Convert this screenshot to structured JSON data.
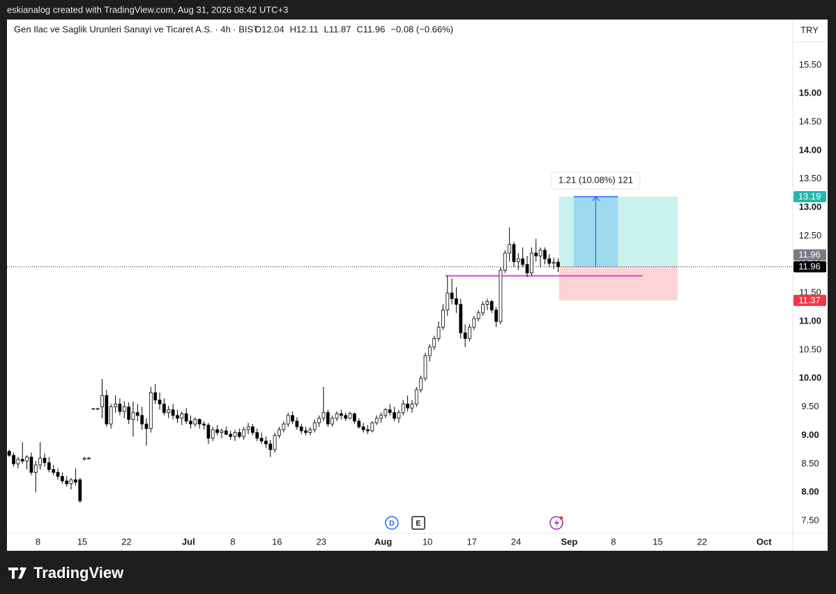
{
  "credit": "eskianalog created with TradingView.com, Aug 31, 2026 08:42 UTC+3",
  "brand": "TradingView",
  "chart_data": {
    "type": "candlestick",
    "symbol": "Gen Ilac ve Saglik Urunleri Sanayi ve Ticaret A.S. · 4h · BIST",
    "legend": [
      "O12.04",
      "H12.11",
      "L11.87",
      "C11.96"
    ],
    "change": "−0.08 (−0.66%)",
    "currency": "TRY",
    "up_color": "#ffffff",
    "down_color": "#000000",
    "wick_color": "#000000",
    "ylim": [
      7.28,
      16.3
    ],
    "yticks": [
      {
        "value": 7.5,
        "label": "7.50"
      },
      {
        "value": 8,
        "label": "8.00"
      },
      {
        "value": 8.5,
        "label": "8.50"
      },
      {
        "value": 9,
        "label": "9.00"
      },
      {
        "value": 9.5,
        "label": "9.50"
      },
      {
        "value": 10,
        "label": "10.00"
      },
      {
        "value": 10.5,
        "label": "10.50"
      },
      {
        "value": 11,
        "label": "11.00"
      },
      {
        "value": 11.5,
        "label": "11.50"
      },
      {
        "value": 12,
        "label": "12.00"
      },
      {
        "value": 12.5,
        "label": "12.50"
      },
      {
        "value": 13,
        "label": "13.00"
      },
      {
        "value": 13.5,
        "label": "13.50"
      },
      {
        "value": 14,
        "label": "14.00"
      },
      {
        "value": 14.5,
        "label": "14.50"
      },
      {
        "value": 15,
        "label": "15.00"
      },
      {
        "value": 15.5,
        "label": "15.50"
      }
    ],
    "xlim": [
      0,
      177.5
    ],
    "xticks": [
      {
        "value": 7,
        "label": "8"
      },
      {
        "value": 17,
        "label": "15"
      },
      {
        "value": 27,
        "label": "22"
      },
      {
        "value": 41,
        "label": "Jul"
      },
      {
        "value": 51,
        "label": "8"
      },
      {
        "value": 61,
        "label": "16"
      },
      {
        "value": 71,
        "label": "23"
      },
      {
        "value": 85,
        "label": "Aug"
      },
      {
        "value": 95,
        "label": "10"
      },
      {
        "value": 105,
        "label": "17"
      },
      {
        "value": 115,
        "label": "24"
      },
      {
        "value": 127,
        "label": "Sep"
      },
      {
        "value": 137,
        "label": "8"
      },
      {
        "value": 147,
        "label": "15"
      },
      {
        "value": 157,
        "label": "22"
      },
      {
        "value": 171,
        "label": "Oct"
      }
    ],
    "ohlc": [
      [
        8.72,
        8.75,
        8.62,
        8.65
      ],
      [
        8.65,
        8.7,
        8.45,
        8.5
      ],
      [
        8.5,
        8.62,
        8.42,
        8.58
      ],
      [
        8.58,
        8.88,
        8.5,
        8.55
      ],
      [
        8.55,
        8.65,
        8.4,
        8.62
      ],
      [
        8.62,
        8.7,
        8.3,
        8.35
      ],
      [
        8.35,
        8.55,
        8.0,
        8.48
      ],
      [
        8.48,
        8.88,
        8.4,
        8.6
      ],
      [
        8.6,
        8.68,
        8.45,
        8.52
      ],
      [
        8.52,
        8.62,
        8.35,
        8.4
      ],
      [
        8.4,
        8.48,
        8.3,
        8.35
      ],
      [
        8.35,
        8.42,
        8.22,
        8.28
      ],
      [
        8.28,
        8.35,
        8.15,
        8.2
      ],
      [
        8.2,
        8.28,
        8.1,
        8.15
      ],
      [
        8.15,
        8.25,
        8.05,
        8.22
      ],
      [
        8.22,
        8.42,
        8.12,
        8.18
      ],
      [
        8.22,
        8.25,
        7.82,
        7.85
      ],
      [
        8.58,
        8.62,
        8.56,
        8.6
      ],
      [
        8.6,
        8.62,
        8.58,
        8.6
      ],
      [
        9.47,
        9.48,
        9.46,
        9.47
      ],
      [
        9.47,
        9.48,
        9.46,
        9.47
      ],
      [
        9.5,
        9.99,
        9.3,
        9.7
      ],
      [
        9.7,
        9.8,
        9.15,
        9.2
      ],
      [
        9.2,
        9.55,
        9.12,
        9.5
      ],
      [
        9.5,
        9.7,
        9.4,
        9.55
      ],
      [
        9.55,
        9.65,
        9.35,
        9.42
      ],
      [
        9.42,
        9.6,
        9.3,
        9.5
      ],
      [
        9.5,
        9.58,
        9.2,
        9.28
      ],
      [
        9.28,
        9.6,
        8.98,
        9.4
      ],
      [
        9.4,
        9.55,
        9.25,
        9.35
      ],
      [
        9.35,
        9.5,
        9.1,
        9.2
      ],
      [
        9.2,
        9.3,
        8.82,
        9.12
      ],
      [
        9.12,
        9.85,
        9.05,
        9.75
      ],
      [
        9.75,
        9.9,
        9.55,
        9.62
      ],
      [
        9.62,
        9.75,
        9.45,
        9.55
      ],
      [
        9.55,
        9.65,
        9.35,
        9.4
      ],
      [
        9.4,
        9.52,
        9.3,
        9.45
      ],
      [
        9.45,
        9.55,
        9.28,
        9.35
      ],
      [
        9.35,
        9.45,
        9.22,
        9.3
      ],
      [
        9.3,
        9.42,
        9.18,
        9.38
      ],
      [
        9.38,
        9.48,
        9.2,
        9.25
      ],
      [
        9.25,
        9.35,
        9.12,
        9.2
      ],
      [
        9.2,
        9.32,
        9.15,
        9.28
      ],
      [
        9.28,
        9.3,
        9.12,
        9.2
      ],
      [
        9.2,
        9.25,
        9.1,
        9.18
      ],
      [
        9.18,
        9.22,
        8.85,
        8.95
      ],
      [
        8.95,
        9.15,
        8.9,
        9.1
      ],
      [
        9.1,
        9.18,
        9.0,
        9.05
      ],
      [
        9.05,
        9.12,
        8.95,
        9.08
      ],
      [
        9.08,
        9.15,
        9.0,
        9.02
      ],
      [
        9.02,
        9.08,
        8.92,
        8.98
      ],
      [
        8.98,
        9.1,
        8.9,
        9.05
      ],
      [
        9.05,
        9.12,
        8.95,
        8.98
      ],
      [
        8.98,
        9.15,
        8.92,
        9.1
      ],
      [
        9.1,
        9.22,
        9.02,
        9.15
      ],
      [
        9.15,
        9.2,
        9.0,
        9.05
      ],
      [
        9.05,
        9.12,
        8.9,
        8.95
      ],
      [
        8.95,
        9.05,
        8.85,
        8.9
      ],
      [
        8.9,
        8.98,
        8.78,
        8.85
      ],
      [
        8.85,
        8.92,
        8.62,
        8.75
      ],
      [
        8.75,
        9.05,
        8.7,
        9.0
      ],
      [
        9.0,
        9.15,
        8.95,
        9.1
      ],
      [
        9.1,
        9.25,
        9.05,
        9.2
      ],
      [
        9.2,
        9.4,
        9.15,
        9.35
      ],
      [
        9.35,
        9.42,
        9.2,
        9.25
      ],
      [
        9.25,
        9.32,
        9.1,
        9.15
      ],
      [
        9.15,
        9.2,
        9.02,
        9.08
      ],
      [
        9.08,
        9.15,
        9.0,
        9.05
      ],
      [
        9.05,
        9.15,
        9.0,
        9.1
      ],
      [
        9.1,
        9.28,
        9.05,
        9.22
      ],
      [
        9.22,
        9.35,
        9.15,
        9.3
      ],
      [
        9.3,
        9.85,
        9.25,
        9.4
      ],
      [
        9.4,
        9.45,
        9.15,
        9.2
      ],
      [
        9.2,
        9.35,
        9.15,
        9.3
      ],
      [
        9.3,
        9.42,
        9.25,
        9.38
      ],
      [
        9.38,
        9.45,
        9.28,
        9.35
      ],
      [
        9.35,
        9.4,
        9.25,
        9.3
      ],
      [
        9.3,
        9.42,
        9.28,
        9.38
      ],
      [
        9.38,
        9.4,
        9.2,
        9.25
      ],
      [
        9.25,
        9.3,
        9.12,
        9.15
      ],
      [
        9.15,
        9.22,
        9.05,
        9.1
      ],
      [
        9.1,
        9.18,
        9.02,
        9.08
      ],
      [
        9.08,
        9.25,
        9.05,
        9.22
      ],
      [
        9.22,
        9.35,
        9.18,
        9.3
      ],
      [
        9.3,
        9.4,
        9.22,
        9.35
      ],
      [
        9.35,
        9.48,
        9.3,
        9.45
      ],
      [
        9.45,
        9.55,
        9.35,
        9.4
      ],
      [
        9.4,
        9.5,
        9.25,
        9.3
      ],
      [
        9.3,
        9.45,
        9.22,
        9.4
      ],
      [
        9.4,
        9.62,
        9.35,
        9.55
      ],
      [
        9.55,
        9.7,
        9.42,
        9.48
      ],
      [
        9.48,
        9.62,
        9.4,
        9.55
      ],
      [
        9.55,
        9.85,
        9.5,
        9.8
      ],
      [
        9.8,
        10.05,
        9.75,
        10.0
      ],
      [
        10.0,
        10.45,
        9.95,
        10.4
      ],
      [
        10.4,
        10.6,
        10.3,
        10.55
      ],
      [
        10.55,
        10.75,
        10.5,
        10.7
      ],
      [
        10.7,
        11.0,
        10.65,
        10.9
      ],
      [
        10.9,
        11.3,
        10.85,
        11.2
      ],
      [
        11.2,
        11.8,
        11.1,
        11.5
      ],
      [
        11.5,
        11.75,
        11.3,
        11.4
      ],
      [
        11.4,
        11.6,
        11.15,
        11.3
      ],
      [
        11.3,
        11.4,
        10.7,
        10.8
      ],
      [
        10.8,
        10.95,
        10.55,
        10.7
      ],
      [
        10.7,
        10.95,
        10.65,
        10.9
      ],
      [
        10.9,
        11.1,
        10.85,
        11.05
      ],
      [
        11.05,
        11.2,
        11.0,
        11.15
      ],
      [
        11.15,
        11.35,
        11.1,
        11.3
      ],
      [
        11.3,
        11.4,
        11.2,
        11.35
      ],
      [
        11.35,
        11.38,
        11.15,
        11.2
      ],
      [
        11.2,
        11.25,
        10.9,
        11.0
      ],
      [
        11.0,
        11.95,
        10.95,
        11.9
      ],
      [
        11.9,
        12.25,
        11.85,
        12.2
      ],
      [
        12.2,
        12.65,
        12.05,
        12.35
      ],
      [
        12.35,
        12.4,
        11.95,
        12.05
      ],
      [
        12.05,
        12.2,
        11.9,
        12.1
      ],
      [
        12.1,
        12.3,
        11.95,
        12.0
      ],
      [
        12.0,
        12.15,
        11.78,
        11.85
      ],
      [
        11.85,
        12.3,
        11.8,
        12.2
      ],
      [
        12.2,
        12.45,
        12.05,
        12.15
      ],
      [
        12.15,
        12.3,
        11.95,
        12.25
      ],
      [
        12.25,
        12.3,
        12.0,
        12.1
      ],
      [
        12.1,
        12.18,
        11.95,
        12.02
      ],
      [
        12.02,
        12.12,
        11.92,
        12.04
      ],
      [
        12.04,
        12.11,
        11.87,
        11.96
      ]
    ],
    "position_tool": {
      "entry": 11.96,
      "target": 13.19,
      "stop": 11.37,
      "x_start": 124.7,
      "x_end": 151.5,
      "measure": {
        "x_start": 128,
        "x_end": 138,
        "label": "1.21 (10.08%) 121"
      },
      "target_color": "#26c6b9",
      "stop_color": "#f23645"
    },
    "level_line": {
      "value": 11.8,
      "x_start": 99,
      "x_end": 143.5,
      "color": "#e040c8"
    },
    "price_labels": [
      {
        "value": 13.19,
        "color": "#22b8ad"
      },
      {
        "value": 11.96,
        "color": "#787b86"
      },
      {
        "value": 11.96,
        "color": "#000000"
      },
      {
        "value": 11.37,
        "color": "#f23645"
      }
    ],
    "events": [
      "D",
      "E"
    ]
  }
}
